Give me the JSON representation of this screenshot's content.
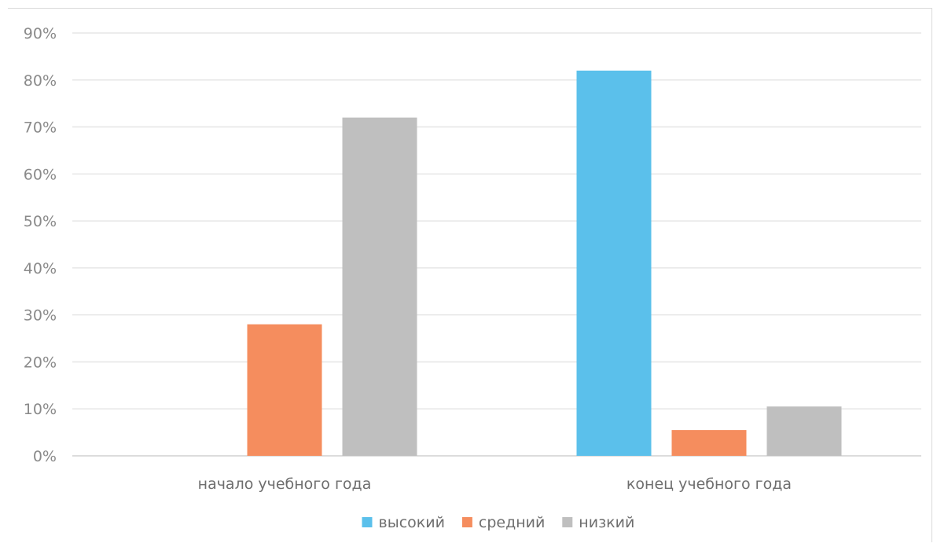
{
  "chart_data": {
    "type": "bar",
    "title": "",
    "xlabel": "",
    "ylabel": "",
    "categories": [
      "начало учебного года",
      "конец учебного года"
    ],
    "series": [
      {
        "name": "высокий",
        "color": "#5bc0eb",
        "values": [
          0,
          82
        ]
      },
      {
        "name": "средний",
        "color": "#f58d5e",
        "values": [
          28,
          5.5
        ]
      },
      {
        "name": "низкий",
        "color": "#bfbfbf",
        "values": [
          72,
          10.5
        ]
      }
    ],
    "ylim": [
      0,
      90
    ],
    "yticks": [
      0,
      10,
      20,
      30,
      40,
      50,
      60,
      70,
      80,
      90
    ],
    "ytick_labels": [
      "0%",
      "10%",
      "20%",
      "30%",
      "40%",
      "50%",
      "60%",
      "70%",
      "80%",
      "90%"
    ],
    "grid": true,
    "legend_position": "bottom"
  }
}
